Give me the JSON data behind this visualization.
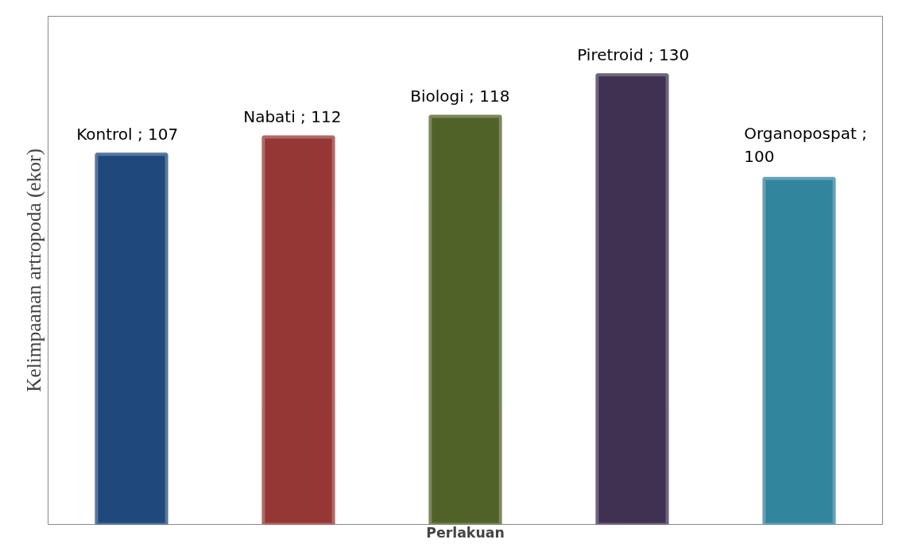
{
  "chart_data": {
    "type": "bar",
    "xlabel": "Perlakuan",
    "ylabel": "Kelimpaanan artropoda (ekor)",
    "categories": [
      null,
      null,
      null,
      null,
      null
    ],
    "values": [
      107,
      112,
      118,
      130,
      100
    ],
    "colors": [
      "#1f497d",
      "#953735",
      "#4f6228",
      "#403152",
      "#31859c"
    ],
    "value_labels": [
      "Kontrol ; 107",
      "Nabati ; 112",
      "Biologi ; 118",
      "Piretroid ; 130",
      "Organopospat ; 100"
    ],
    "legend": false,
    "grid": false
  }
}
